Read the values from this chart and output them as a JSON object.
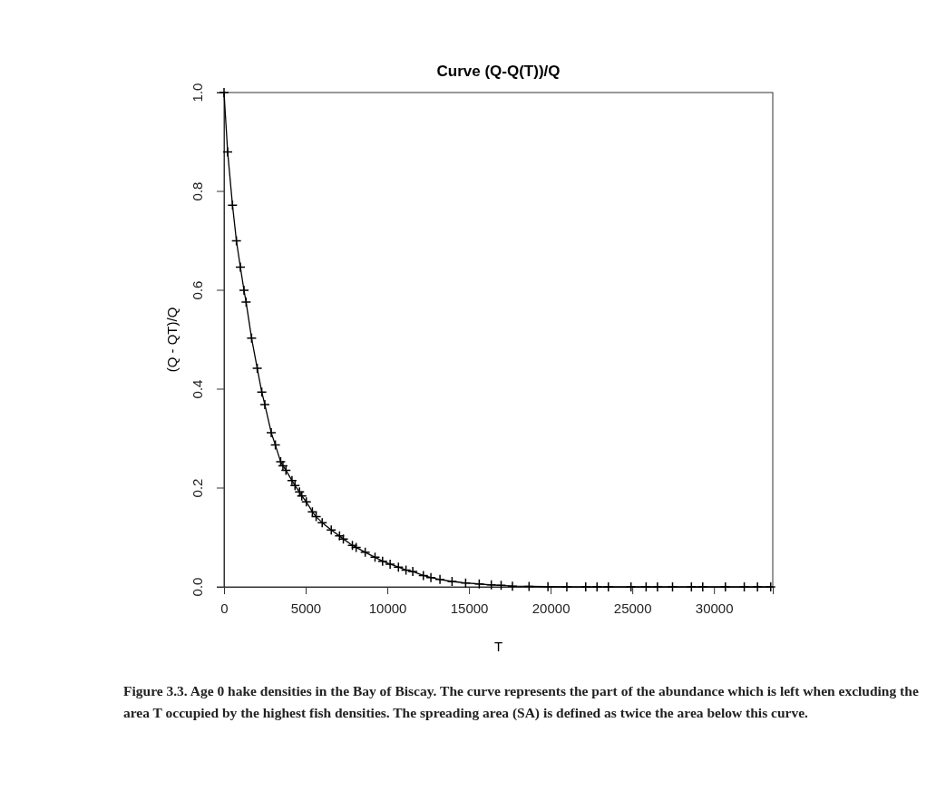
{
  "chart_data": {
    "type": "line",
    "title": "Curve (Q-Q(T))/Q",
    "xlabel": "T",
    "ylabel": "(Q - QT)/Q",
    "marker": "cross",
    "series": [
      {
        "color": "#000000",
        "x": [
          0,
          222,
          519,
          759,
          1000,
          1222,
          1352,
          1687,
          2034,
          2312,
          2497,
          2890,
          3144,
          3467,
          3606,
          3791,
          4161,
          4346,
          4623,
          4762,
          5040,
          5409,
          5640,
          6010,
          6565,
          7073,
          7305,
          7860,
          8090,
          8645,
          9246,
          9709,
          10170,
          10679,
          11142,
          11558,
          12205,
          12667,
          13222,
          13962,
          14794,
          15626,
          16366,
          16967,
          17660,
          18677,
          19834,
          20990,
          22146,
          22840,
          23533,
          24920,
          25845,
          26539,
          27463,
          28619,
          29312,
          30700,
          31855,
          32664,
          33473
        ],
        "values": [
          1.0,
          0.88,
          0.772,
          0.7,
          0.647,
          0.6,
          0.576,
          0.503,
          0.442,
          0.394,
          0.369,
          0.312,
          0.287,
          0.253,
          0.245,
          0.236,
          0.215,
          0.205,
          0.192,
          0.184,
          0.172,
          0.152,
          0.142,
          0.13,
          0.115,
          0.103,
          0.097,
          0.084,
          0.08,
          0.07,
          0.06,
          0.052,
          0.046,
          0.04,
          0.034,
          0.031,
          0.023,
          0.019,
          0.015,
          0.011,
          0.008,
          0.006,
          0.004,
          0.003,
          0.0015,
          0.001,
          0.0005,
          0,
          0,
          0,
          0,
          0,
          0,
          0,
          0,
          0,
          0,
          0,
          0,
          0,
          0
        ]
      }
    ],
    "xlim": [
      0,
      33600
    ],
    "ylim": [
      0,
      1
    ],
    "xticks": [
      0,
      5000,
      10000,
      15000,
      20000,
      25000,
      30000
    ],
    "yticks": [
      {
        "value": 0,
        "label": "0.0"
      },
      {
        "value": 0.2,
        "label": "0.2"
      },
      {
        "value": 0.4,
        "label": "0.4"
      },
      {
        "value": 0.6,
        "label": "0.6"
      },
      {
        "value": 0.8,
        "label": "0.8"
      },
      {
        "value": 1,
        "label": "1.0"
      }
    ],
    "annotations": [
      "Figure 3.3. Age 0 hake densities in the Bay of Biscay. The curve represents the part of the abundance which is left when excluding the area T occupied by the highest fish densities. The spreading area (SA) is defined as twice the area below this curve."
    ]
  }
}
